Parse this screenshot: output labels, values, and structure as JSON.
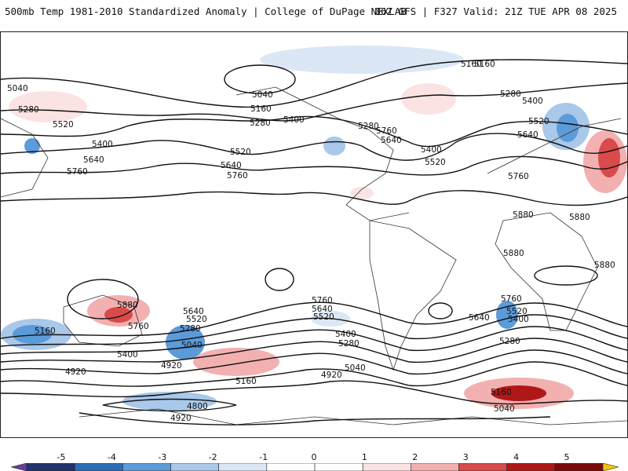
{
  "header": {
    "title": "500mb Temp 1981-2010 Standardized Anomaly | College of DuPage NEXLAB",
    "run_info": "06Z GFS | F327 Valid: 21Z TUE APR 08 2025"
  },
  "colors": {
    "contour": "#111111",
    "coast": "#333333",
    "warm_1": "#fbe3e3",
    "warm_2": "#f3b0b0",
    "warm_3": "#d94a4a",
    "warm_4": "#b01818",
    "cold_1": "#dbe7f5",
    "cold_2": "#a9c8ea",
    "cold_3": "#5c9bd9",
    "cold_4": "#2f6fbd"
  },
  "map": {
    "contour_labels": [
      "5160",
      "5040",
      "5280",
      "5400",
      "5520",
      "5640",
      "5760",
      "5880",
      "4920",
      "4800"
    ],
    "labels": [
      {
        "text": "5160",
        "key": "a"
      },
      {
        "text": "5040",
        "key": "b"
      },
      {
        "text": "5280",
        "key": "c"
      },
      {
        "text": "5520",
        "key": "d"
      },
      {
        "text": "5400",
        "key": "e"
      },
      {
        "text": "5640",
        "key": "f"
      },
      {
        "text": "5760",
        "key": "g"
      },
      {
        "text": "5040",
        "key": "h"
      },
      {
        "text": "5160",
        "key": "i"
      },
      {
        "text": "5280",
        "key": "j"
      },
      {
        "text": "5400",
        "key": "k"
      },
      {
        "text": "5520",
        "key": "l"
      },
      {
        "text": "5640",
        "key": "m"
      },
      {
        "text": "5760",
        "key": "n"
      },
      {
        "text": "5280",
        "key": "o"
      },
      {
        "text": "5640",
        "key": "p"
      },
      {
        "text": "5760",
        "key": "q"
      },
      {
        "text": "5400",
        "key": "r"
      },
      {
        "text": "5520",
        "key": "s"
      },
      {
        "text": "5160",
        "key": "t"
      },
      {
        "text": "5280",
        "key": "u"
      },
      {
        "text": "5400",
        "key": "v"
      },
      {
        "text": "5520",
        "key": "w"
      },
      {
        "text": "5640",
        "key": "x"
      },
      {
        "text": "5760",
        "key": "y"
      },
      {
        "text": "5880",
        "key": "z"
      },
      {
        "text": "5880",
        "key": "aa"
      },
      {
        "text": "5880",
        "key": "ab"
      },
      {
        "text": "5880",
        "key": "ac"
      },
      {
        "text": "5160",
        "key": "ad"
      },
      {
        "text": "5880",
        "key": "ae"
      },
      {
        "text": "5760",
        "key": "af"
      },
      {
        "text": "5400",
        "key": "ag"
      },
      {
        "text": "4920",
        "key": "ah"
      },
      {
        "text": "5640",
        "key": "ai"
      },
      {
        "text": "5520",
        "key": "aj"
      },
      {
        "text": "5280",
        "key": "ak"
      },
      {
        "text": "5040",
        "key": "al"
      },
      {
        "text": "4920",
        "key": "am"
      },
      {
        "text": "5160",
        "key": "an"
      },
      {
        "text": "4800",
        "key": "ao"
      },
      {
        "text": "4920",
        "key": "ap"
      },
      {
        "text": "5760",
        "key": "aq"
      },
      {
        "text": "5640",
        "key": "ar"
      },
      {
        "text": "5520",
        "key": "as"
      },
      {
        "text": "5400",
        "key": "at"
      },
      {
        "text": "5280",
        "key": "au"
      },
      {
        "text": "5040",
        "key": "av"
      },
      {
        "text": "4920",
        "key": "aw"
      },
      {
        "text": "5760",
        "key": "ax"
      },
      {
        "text": "5640",
        "key": "ay"
      },
      {
        "text": "5520",
        "key": "az"
      },
      {
        "text": "5400",
        "key": "ba"
      },
      {
        "text": "5280",
        "key": "bb"
      },
      {
        "text": "5040",
        "key": "bc"
      },
      {
        "text": "5160",
        "key": "bd"
      },
      {
        "text": "5040",
        "key": "be"
      }
    ]
  },
  "colorbar": {
    "ticks": [
      "-5",
      "-4",
      "-3",
      "-2",
      "-1",
      "0",
      "1",
      "2",
      "3",
      "4",
      "5"
    ],
    "segments": [
      "#6a3d9a",
      "#22346b",
      "#2b6cb8",
      "#5c9bd9",
      "#a9c8ea",
      "#dbe7f5",
      "#ffffff",
      "#ffffff",
      "#fbe3e3",
      "#f3b0b0",
      "#d94a4a",
      "#b01818",
      "#7a0a0a",
      "#f5c400"
    ]
  }
}
